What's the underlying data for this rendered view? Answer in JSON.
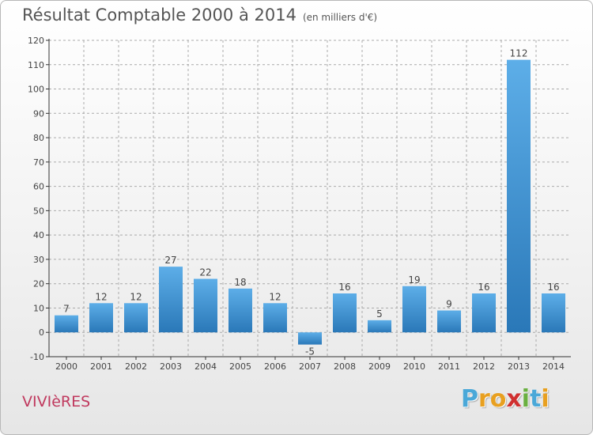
{
  "title": "Résultat Comptable 2000 à 2014",
  "unit": "(en milliers d'€)",
  "commune": "VIVIèRES",
  "logo": {
    "letters": [
      "P",
      "r",
      "o",
      "x",
      "i",
      "t",
      "i"
    ],
    "colors": [
      "#4aa8d8",
      "#e8a020",
      "#e8a020",
      "#d03030",
      "#6ab040",
      "#4aa8d8",
      "#e8a020"
    ]
  },
  "colors": {
    "bar_top": "#5daee8",
    "bar_bottom": "#2a78b8",
    "axis": "#333333",
    "grid": "#aaaaaa"
  },
  "chart_data": {
    "type": "bar",
    "categories": [
      "2000",
      "2001",
      "2002",
      "2003",
      "2004",
      "2005",
      "2006",
      "2007",
      "2008",
      "2009",
      "2010",
      "2011",
      "2012",
      "2013",
      "2014"
    ],
    "values": [
      7,
      12,
      12,
      27,
      22,
      18,
      12,
      -5,
      16,
      5,
      19,
      9,
      16,
      112,
      16
    ],
    "ylim": [
      -10,
      120
    ],
    "yticks": [
      -10,
      0,
      10,
      20,
      30,
      40,
      50,
      60,
      70,
      80,
      90,
      100,
      110,
      120
    ],
    "grid": true,
    "title": "Résultat Comptable 2000 à 2014",
    "xlabel": "",
    "ylabel": ""
  }
}
